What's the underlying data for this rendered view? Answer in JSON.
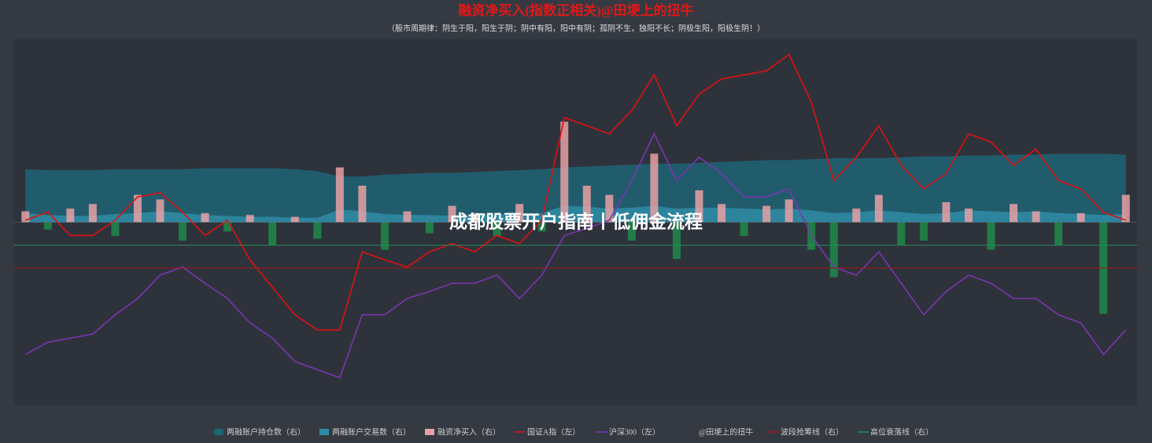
{
  "chart_data": {
    "type": "combo",
    "title": "融资净买入(指数正相关)@田埂上的扭牛",
    "subtitle": "（股市周期律：阴生于阳，阳生于阴；阴中有阳，阳中有阴；孤阴不生，独阳不长；阴极生阳，阳极生阴！）",
    "overlay": "成都股票开户指南丨低佣金流程",
    "ylim": [
      2400,
      6000
    ],
    "y2lim": [
      -200,
      200
    ],
    "series": [
      {
        "name": "两融账户持仓数（右）",
        "kind": "area",
        "axis": "y2",
        "color": "#1e6477",
        "values": [
          58,
          57,
          57,
          57,
          58,
          58,
          58,
          58,
          59,
          59,
          59,
          59,
          58,
          56,
          50,
          50,
          52,
          53,
          54,
          54,
          55,
          56,
          57,
          58,
          60,
          61,
          62,
          63,
          64,
          64,
          65,
          66,
          67,
          68,
          68,
          69,
          70,
          70,
          70,
          71,
          72,
          72,
          73,
          73,
          74,
          74,
          75,
          75,
          75,
          74
        ]
      },
      {
        "name": "两融账户交易数（右）",
        "kind": "area",
        "axis": "y2",
        "color": "#2f8ba6",
        "values": [
          10,
          8,
          7,
          7,
          9,
          10,
          12,
          10,
          8,
          7,
          6,
          6,
          5,
          5,
          14,
          12,
          9,
          8,
          8,
          7,
          8,
          9,
          9,
          10,
          18,
          17,
          15,
          16,
          18,
          15,
          16,
          16,
          15,
          14,
          15,
          13,
          10,
          11,
          13,
          11,
          9,
          10,
          13,
          12,
          11,
          12,
          10,
          9,
          8,
          9
        ]
      },
      {
        "name": "融资净买入（右）",
        "kind": "bar",
        "axis": "y2",
        "color": "#e8a0a4",
        "negative_color": "#1f8a4a",
        "values": [
          12,
          -8,
          15,
          20,
          -15,
          30,
          25,
          -20,
          10,
          -10,
          8,
          -25,
          6,
          -18,
          60,
          40,
          -30,
          12,
          -12,
          18,
          10,
          -15,
          20,
          -10,
          110,
          40,
          30,
          -20,
          75,
          -40,
          35,
          20,
          -15,
          18,
          25,
          -30,
          -60,
          15,
          30,
          -25,
          -20,
          22,
          15,
          -30,
          20,
          12,
          -25,
          10,
          -100,
          30
        ]
      },
      {
        "name": "国证A指（左）",
        "kind": "line",
        "axis": "y",
        "color": "#e01010",
        "values": [
          4220,
          4300,
          4070,
          4070,
          4220,
          4450,
          4490,
          4300,
          4070,
          4220,
          3830,
          3560,
          3290,
          3140,
          3140,
          3910,
          3830,
          3760,
          3910,
          3990,
          3910,
          4070,
          3990,
          4220,
          5230,
          5150,
          5070,
          5300,
          5650,
          5150,
          5460,
          5610,
          5650,
          5690,
          5850,
          5380,
          4610,
          4840,
          5150,
          4760,
          4530,
          4680,
          5070,
          4990,
          4760,
          4920,
          4610,
          4530,
          4300,
          4220
        ]
      },
      {
        "name": "沪深300（左）",
        "kind": "line",
        "axis": "y",
        "color": "#7a35b0",
        "values": [
          2900,
          3020,
          3060,
          3100,
          3290,
          3450,
          3680,
          3760,
          3600,
          3450,
          3210,
          3060,
          2830,
          2750,
          2670,
          3290,
          3290,
          3450,
          3520,
          3600,
          3600,
          3680,
          3450,
          3680,
          4070,
          4140,
          4220,
          4610,
          5070,
          4610,
          4840,
          4680,
          4450,
          4450,
          4530,
          4070,
          3760,
          3680,
          3910,
          3600,
          3290,
          3520,
          3680,
          3600,
          3450,
          3450,
          3290,
          3210,
          2900,
          3140
        ]
      },
      {
        "name": "@田埂上的扭牛",
        "kind": "none"
      },
      {
        "name": "波段抢筹线（右）",
        "kind": "hline",
        "axis": "y2",
        "color": "#a01818",
        "value": -50
      },
      {
        "name": "高位衰落线（右）",
        "kind": "hline",
        "axis": "y2",
        "color": "#2a8a5a",
        "value": -25
      }
    ]
  }
}
